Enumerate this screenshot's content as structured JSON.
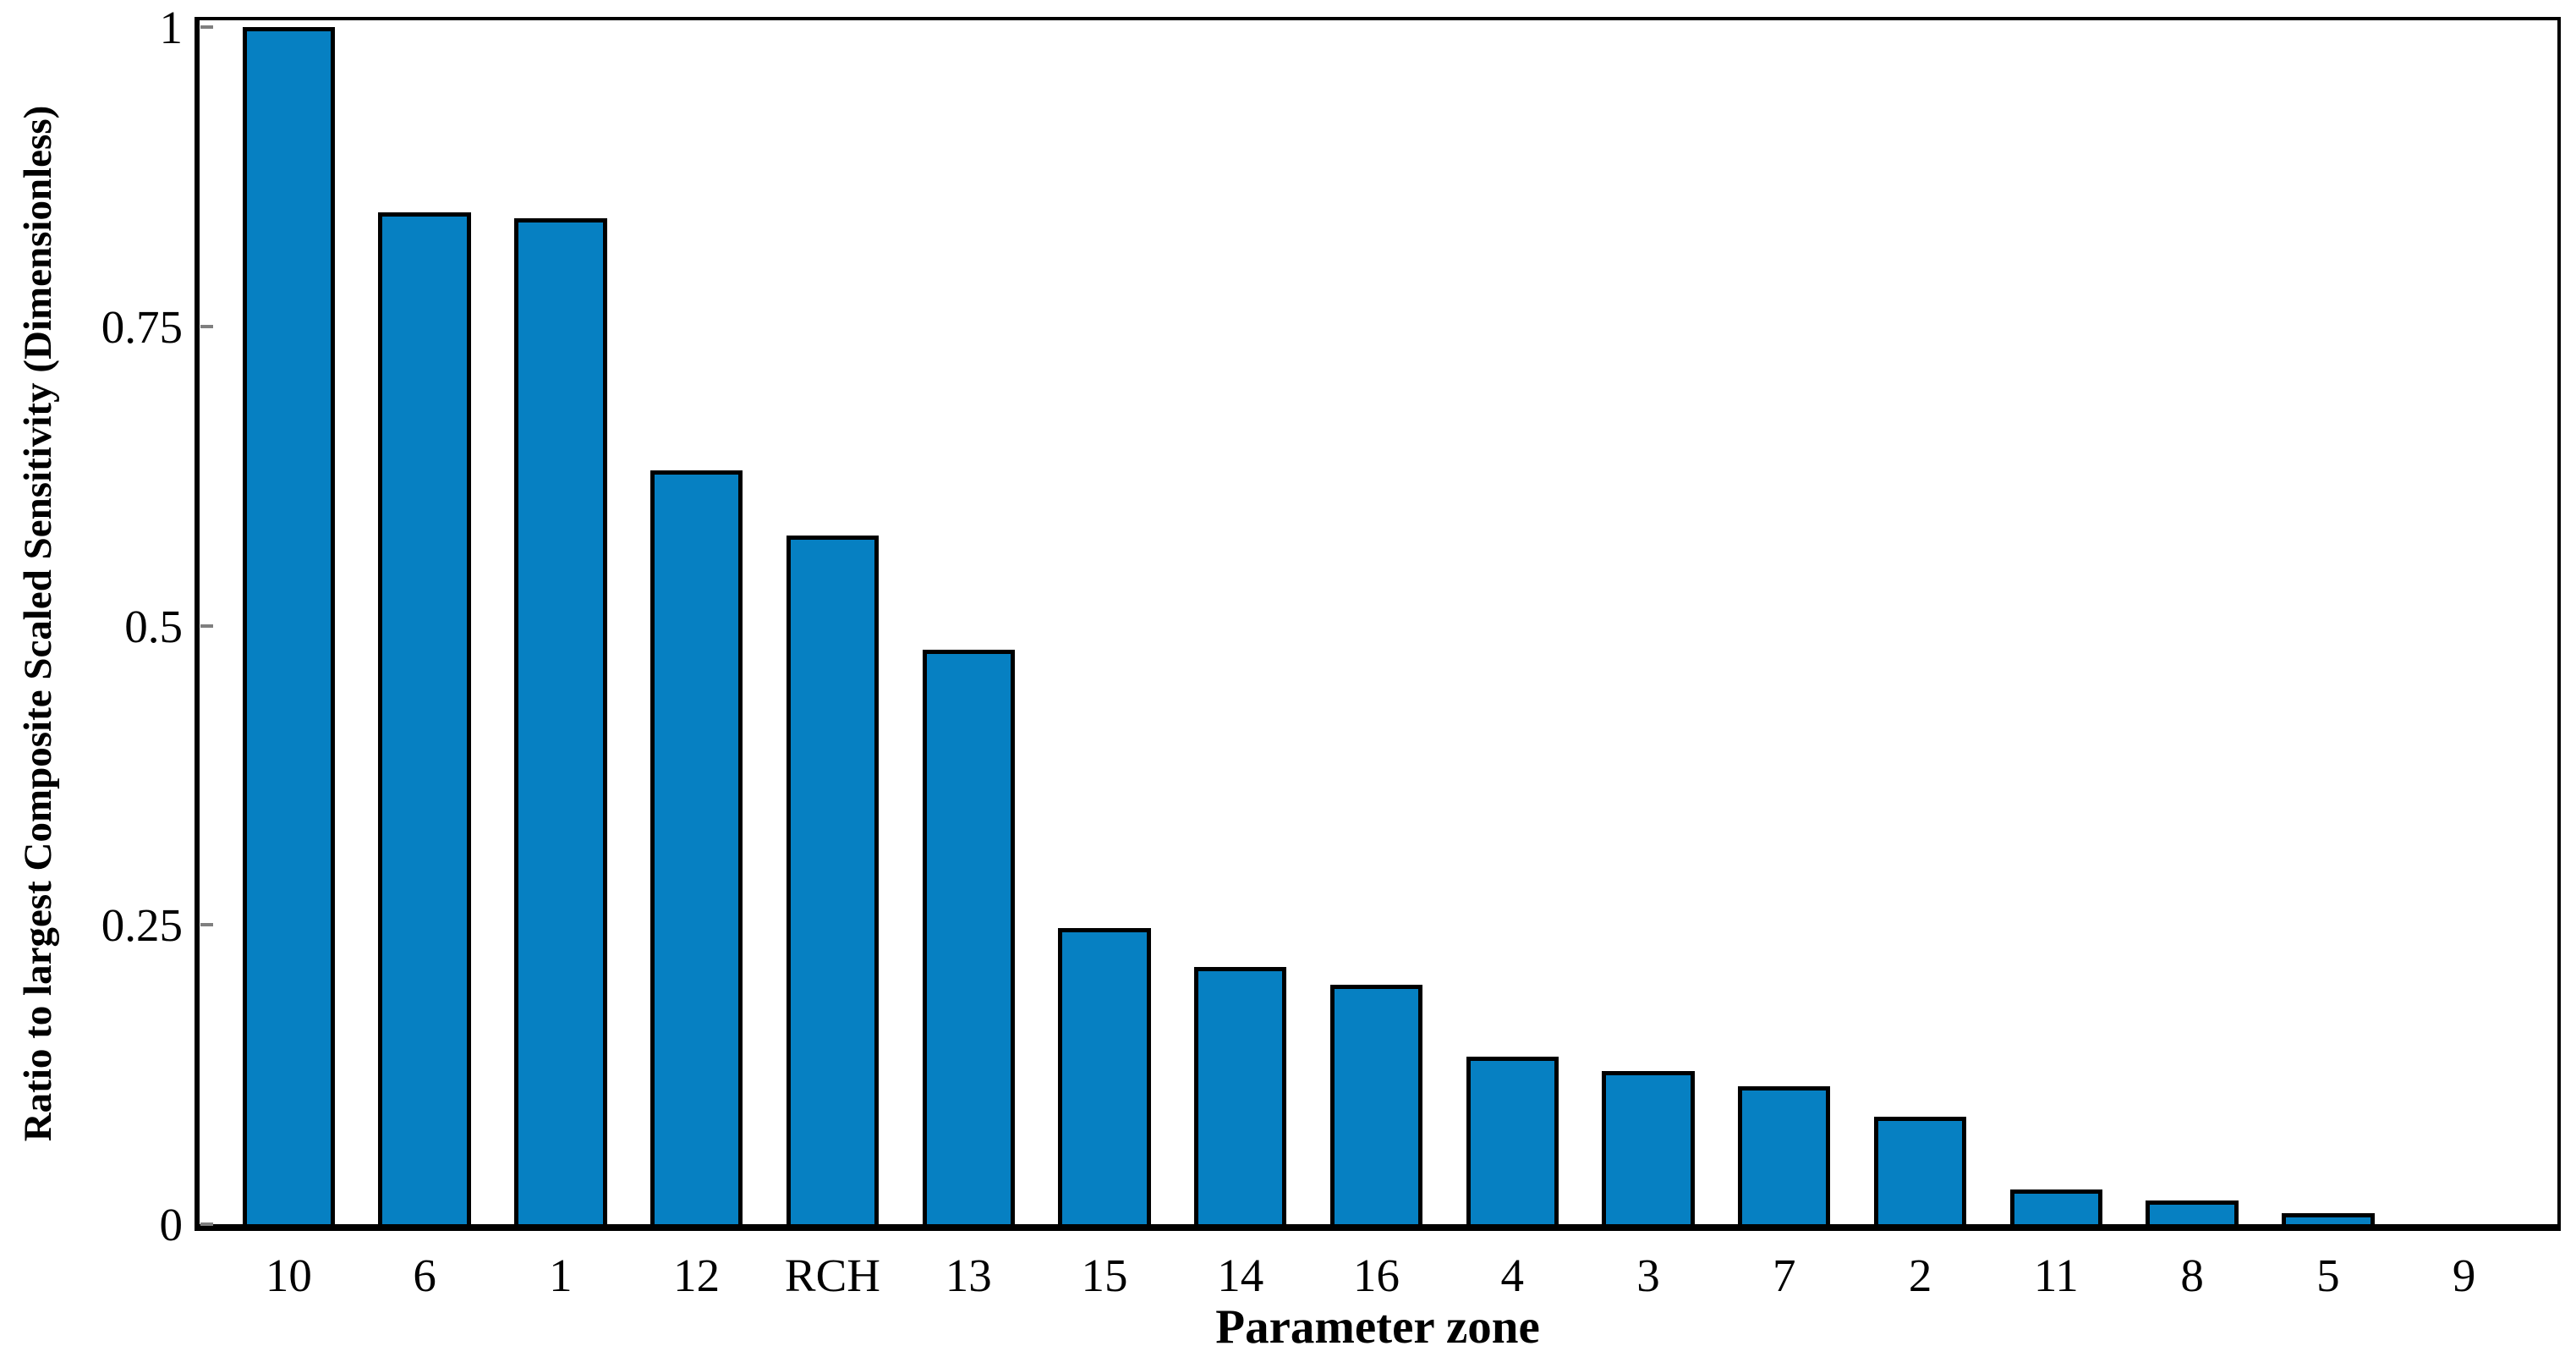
{
  "figure": {
    "background_color": "#ffffff",
    "bar_fill_color": "#0680c2",
    "bar_border_color": "#000000",
    "axis_frame_color": "#000000",
    "tick_mark_color": "#7f7f7f",
    "text_color": "#000000"
  },
  "chart_data": {
    "type": "bar",
    "title": "",
    "xlabel": "Parameter zone",
    "ylabel": "Ratio to largest Composite Scaled Sensitivity (Dimensionless)",
    "categories": [
      "10",
      "6",
      "1",
      "12",
      "RCH",
      "13",
      "15",
      "14",
      "16",
      "4",
      "3",
      "7",
      "2",
      "11",
      "8",
      "5",
      "9"
    ],
    "values": [
      1.0,
      0.845,
      0.84,
      0.63,
      0.575,
      0.48,
      0.247,
      0.215,
      0.2,
      0.14,
      0.128,
      0.115,
      0.09,
      0.029,
      0.02,
      0.009,
      0.001
    ],
    "ylim": [
      0,
      1
    ],
    "yticks": [
      0,
      0.25,
      0.5,
      0.75,
      1
    ],
    "ytick_labels": [
      "0",
      "0.25",
      "0.5",
      "0.75",
      "1"
    ],
    "grid": false,
    "legend": "none",
    "frame": "full-box",
    "tick_direction": "in"
  }
}
